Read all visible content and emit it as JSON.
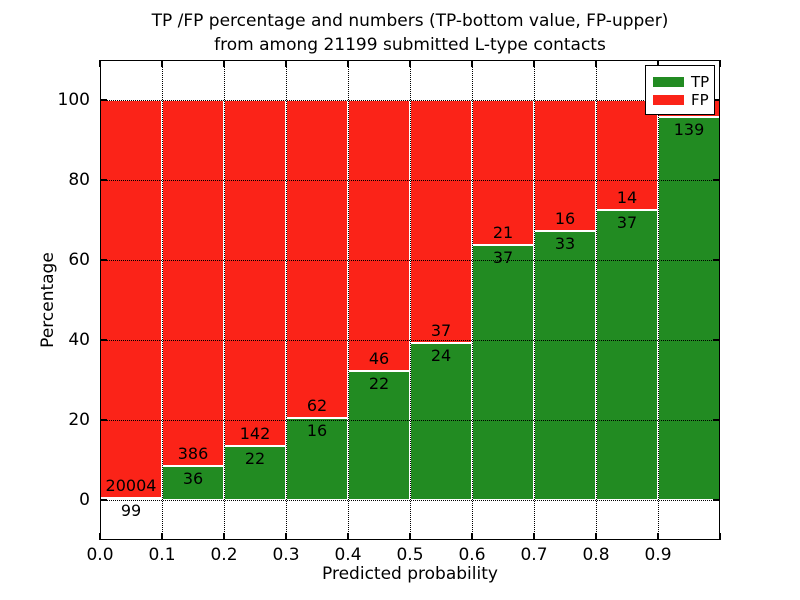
{
  "title": {
    "line1": "TP /FP percentage and numbers (TP-bottom value, FP-upper)",
    "line2": "from among 21199 submitted L-type contacts"
  },
  "axes": {
    "xlabel": "Predicted probability",
    "ylabel": "Percentage",
    "x_tick_labels": [
      "0.0",
      "0.1",
      "0.2",
      "0.3",
      "0.4",
      "0.5",
      "0.6",
      "0.7",
      "0.8",
      "0.9"
    ],
    "y_tick_values": [
      0,
      20,
      40,
      60,
      80,
      100
    ]
  },
  "legend": {
    "position": "upper right",
    "items": [
      {
        "label": "TP",
        "color": "#228b22"
      },
      {
        "label": "FP",
        "color": "#fb2318"
      }
    ]
  },
  "chart_data": {
    "type": "bar",
    "subtype": "stacked-percentage-histogram",
    "title": "TP /FP percentage and numbers (TP-bottom value, FP-upper) from among 21199 submitted L-type contacts",
    "xlabel": "Predicted probability",
    "ylabel": "Percentage",
    "xlim": [
      0.0,
      1.0
    ],
    "ylim": [
      -10,
      110
    ],
    "grid": true,
    "bin_width": 0.1,
    "total_contacts": 21199,
    "series": [
      {
        "name": "TP",
        "color": "#228b22"
      },
      {
        "name": "FP",
        "color": "#fb2318"
      }
    ],
    "bins": [
      {
        "x0": 0.0,
        "x1": 0.1,
        "tp": 99,
        "fp": 20004,
        "tp_label": "99",
        "fp_label": "20004"
      },
      {
        "x0": 0.1,
        "x1": 0.2,
        "tp": 36,
        "fp": 386,
        "tp_label": "36",
        "fp_label": "386"
      },
      {
        "x0": 0.2,
        "x1": 0.3,
        "tp": 22,
        "fp": 142,
        "tp_label": "22",
        "fp_label": "142"
      },
      {
        "x0": 0.3,
        "x1": 0.4,
        "tp": 16,
        "fp": 62,
        "tp_label": "16",
        "fp_label": "62"
      },
      {
        "x0": 0.4,
        "x1": 0.5,
        "tp": 22,
        "fp": 46,
        "tp_label": "22",
        "fp_label": "46"
      },
      {
        "x0": 0.5,
        "x1": 0.6,
        "tp": 24,
        "fp": 37,
        "tp_label": "24",
        "fp_label": "37"
      },
      {
        "x0": 0.6,
        "x1": 0.7,
        "tp": 37,
        "fp": 21,
        "tp_label": "37",
        "fp_label": "21"
      },
      {
        "x0": 0.7,
        "x1": 0.8,
        "tp": 33,
        "fp": 16,
        "tp_label": "33",
        "fp_label": "16"
      },
      {
        "x0": 0.8,
        "x1": 0.9,
        "tp": 37,
        "fp": 14,
        "tp_label": "37",
        "fp_label": "14"
      },
      {
        "x0": 0.9,
        "x1": 1.0,
        "tp": 139,
        "fp": 6,
        "tp_label": "139",
        "fp_label": ""
      }
    ]
  }
}
